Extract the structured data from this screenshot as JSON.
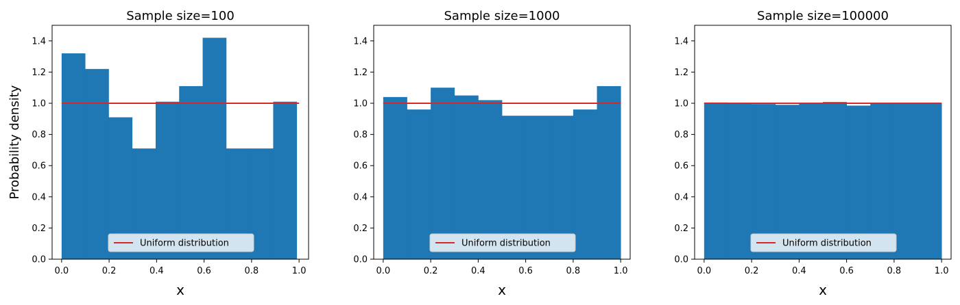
{
  "figure": {
    "ylabel": "Probability density"
  },
  "style": {
    "bar_color": "#1f77b4",
    "line_color": "#d62728",
    "axes_color": "#000000"
  },
  "chart_data": [
    {
      "type": "bar",
      "title": "Sample size=100",
      "xlabel": "x",
      "ylabel": "Probability density",
      "xlim": [
        -0.04,
        1.04
      ],
      "ylim": [
        0.0,
        1.5
      ],
      "xticks": [
        "0.0",
        "0.2",
        "0.4",
        "0.6",
        "0.8",
        "1.0"
      ],
      "yticks": [
        "0.0",
        "0.2",
        "0.4",
        "0.6",
        "0.8",
        "1.0",
        "1.2",
        "1.4"
      ],
      "bin_edges": [
        0.0,
        0.099,
        0.198,
        0.297,
        0.396,
        0.495,
        0.594,
        0.693,
        0.792,
        0.891,
        0.99
      ],
      "values": [
        1.32,
        1.22,
        0.91,
        0.71,
        1.01,
        1.11,
        1.42,
        0.71,
        0.71,
        1.01
      ],
      "reference_line": {
        "name": "Uniform distribution",
        "y": 1.0,
        "x": [
          0.0,
          1.0
        ]
      },
      "legend": {
        "entries": [
          "Uniform distribution"
        ],
        "placement": "lower-center"
      },
      "grid": false
    },
    {
      "type": "bar",
      "title": "Sample size=1000",
      "xlabel": "x",
      "ylabel": "",
      "xlim": [
        -0.04,
        1.04
      ],
      "ylim": [
        0.0,
        1.5
      ],
      "xticks": [
        "0.0",
        "0.2",
        "0.4",
        "0.6",
        "0.8",
        "1.0"
      ],
      "yticks": [
        "0.0",
        "0.2",
        "0.4",
        "0.6",
        "0.8",
        "1.0",
        "1.2",
        "1.4"
      ],
      "bin_edges": [
        0.0,
        0.1,
        0.2,
        0.3,
        0.4,
        0.5,
        0.6,
        0.7,
        0.8,
        0.9,
        1.0
      ],
      "values": [
        1.04,
        0.96,
        1.1,
        1.05,
        1.02,
        0.92,
        0.92,
        0.92,
        0.96,
        1.11
      ],
      "reference_line": {
        "name": "Uniform distribution",
        "y": 1.0,
        "x": [
          0.0,
          1.0
        ]
      },
      "legend": {
        "entries": [
          "Uniform distribution"
        ],
        "placement": "lower-center"
      },
      "grid": false
    },
    {
      "type": "bar",
      "title": "Sample size=100000",
      "xlabel": "x",
      "ylabel": "",
      "xlim": [
        -0.04,
        1.04
      ],
      "ylim": [
        0.0,
        1.5
      ],
      "xticks": [
        "0.0",
        "0.2",
        "0.4",
        "0.6",
        "0.8",
        "1.0"
      ],
      "yticks": [
        "0.0",
        "0.2",
        "0.4",
        "0.6",
        "0.8",
        "1.0",
        "1.2",
        "1.4"
      ],
      "bin_edges": [
        0.0,
        0.1,
        0.2,
        0.3,
        0.4,
        0.5,
        0.6,
        0.7,
        0.8,
        0.9,
        1.0
      ],
      "values": [
        1.005,
        1.002,
        0.995,
        0.99,
        1.003,
        1.008,
        0.985,
        0.998,
        1.0,
        1.0
      ],
      "reference_line": {
        "name": "Uniform distribution",
        "y": 1.0,
        "x": [
          0.0,
          1.0
        ]
      },
      "legend": {
        "entries": [
          "Uniform distribution"
        ],
        "placement": "lower-center"
      },
      "grid": false
    }
  ]
}
